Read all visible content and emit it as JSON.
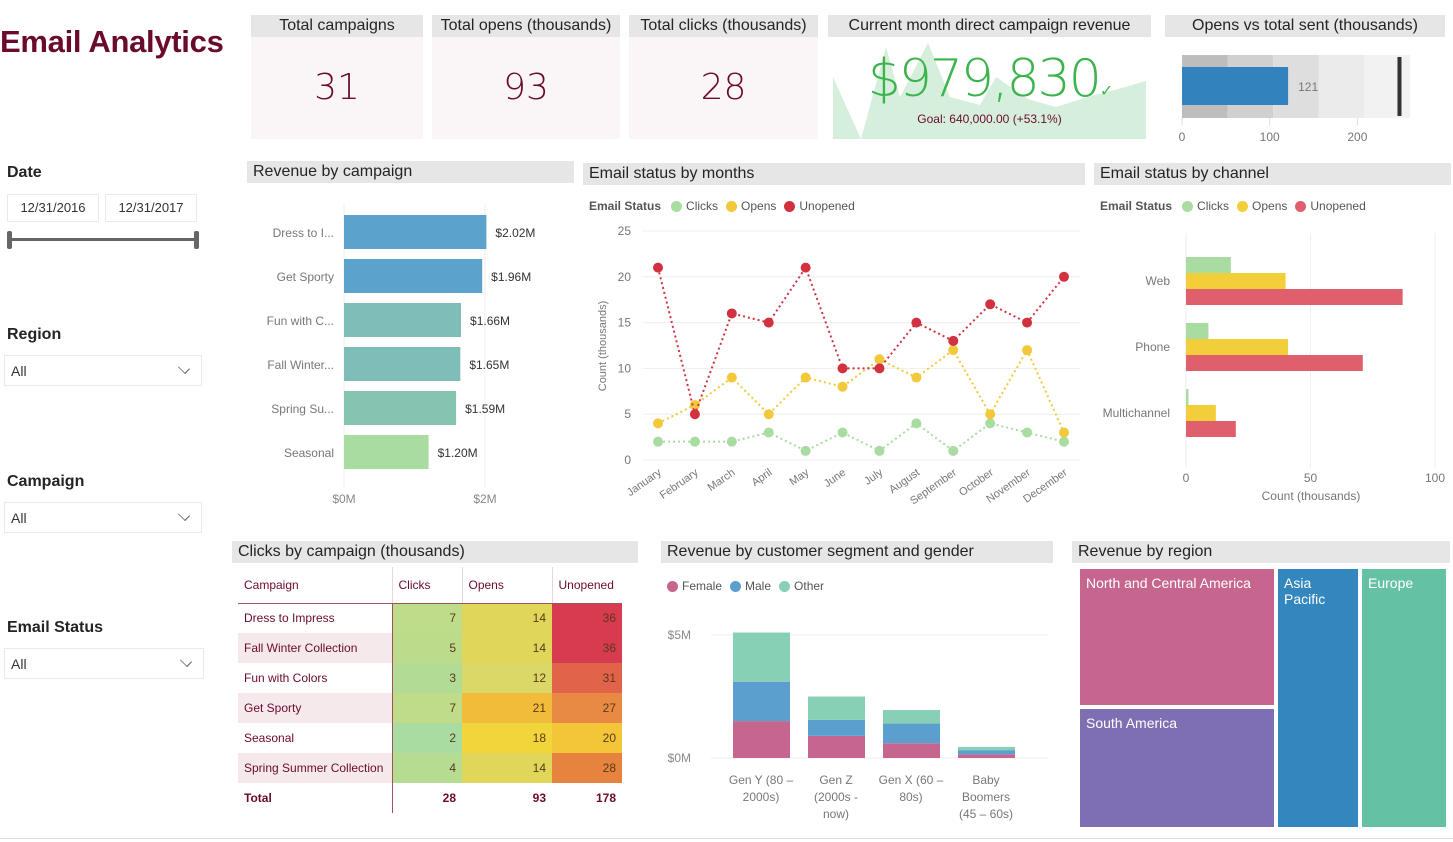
{
  "header": {
    "title": "Email Analytics"
  },
  "filters": {
    "date": {
      "label": "Date",
      "start": "12/31/2016",
      "end": "12/31/2017"
    },
    "region": {
      "label": "Region",
      "value": "All"
    },
    "campaign": {
      "label": "Campaign",
      "value": "All"
    },
    "email_status": {
      "label": "Email Status",
      "value": "All"
    }
  },
  "kpis": {
    "total_campaigns": {
      "title": "Total campaigns",
      "value": "31"
    },
    "total_opens": {
      "title": "Total opens (thousands)",
      "value": "93"
    },
    "total_clicks": {
      "title": "Total clicks (thousands)",
      "value": "28"
    },
    "revenue": {
      "title": "Current month direct campaign revenue",
      "value": "$979,830",
      "goal": "Goal: 640,000.00 (+53.1%)",
      "status_icon": "checkmark-icon",
      "color": "#3cb44b"
    },
    "bullet": {
      "title": "Opens vs total sent (thousands)",
      "value": 121,
      "value_label": "121",
      "target": 248,
      "bands": [
        52,
        104,
        156,
        208,
        260
      ],
      "ticks": [
        "0",
        "100",
        "200"
      ],
      "max": 260,
      "color": "#3182bd"
    }
  },
  "chart_data": [
    {
      "id": "revenue_by_campaign",
      "type": "bar",
      "title": "Revenue by campaign",
      "orientation": "horizontal",
      "categories": [
        "Dress to I...",
        "Get Sporty",
        "Fun with C...",
        "Fall Winter...",
        "Spring Su...",
        "Seasonal"
      ],
      "values": [
        2.02,
        1.96,
        1.66,
        1.65,
        1.59,
        1.2
      ],
      "data_labels": [
        "$2.02M",
        "$1.96M",
        "$1.66M",
        "$1.65M",
        "$1.59M",
        "$1.20M"
      ],
      "colors": [
        "#5ba3cc",
        "#5ba3cc",
        "#7fbdb8",
        "#7fbdb8",
        "#86c3b1",
        "#a8dca0"
      ],
      "xlim": [
        0,
        3
      ],
      "xticks": [
        {
          "v": 0,
          "label": "$0M"
        },
        {
          "v": 2,
          "label": "$2M"
        }
      ],
      "unit": "$M"
    },
    {
      "id": "email_status_by_months",
      "type": "line",
      "title": "Email status by months",
      "legend_title": "Email Status",
      "legend_position": "top-left",
      "categories": [
        "January",
        "February",
        "March",
        "April",
        "May",
        "June",
        "July",
        "August",
        "September",
        "October",
        "November",
        "December"
      ],
      "series": [
        {
          "name": "Clicks",
          "color": "#a8dca0",
          "values": [
            2,
            2,
            2,
            3,
            1,
            3,
            1,
            4,
            1,
            4,
            3,
            2
          ]
        },
        {
          "name": "Opens",
          "color": "#f2c93a",
          "values": [
            4,
            6,
            9,
            5,
            9,
            8,
            11,
            9,
            12,
            5,
            12,
            3
          ]
        },
        {
          "name": "Unopened",
          "color": "#d2323f",
          "values": [
            21,
            5,
            16,
            15,
            21,
            10,
            10,
            15,
            13,
            17,
            15,
            20
          ]
        }
      ],
      "ylabel": "Count (thousands)",
      "ylim": [
        0,
        25
      ],
      "yticks": [
        0,
        5,
        10,
        15,
        20,
        25
      ],
      "grid": true
    },
    {
      "id": "email_status_by_channel",
      "type": "bar",
      "title": "Email status by channel",
      "orientation": "horizontal",
      "legend_title": "Email Status",
      "legend_position": "top-left",
      "categories": [
        "Web",
        "Phone",
        "Multichannel"
      ],
      "series": [
        {
          "name": "Clicks",
          "color": "#a8dca0",
          "values": [
            18,
            9,
            1
          ]
        },
        {
          "name": "Opens",
          "color": "#f2ce3a",
          "values": [
            40,
            41,
            12
          ]
        },
        {
          "name": "Unopened",
          "color": "#df5f6c",
          "values": [
            87,
            71,
            20
          ]
        }
      ],
      "xlabel": "Count (thousands)",
      "xlim": [
        0,
        100
      ],
      "xticks": [
        0,
        50,
        100
      ],
      "grid": true
    },
    {
      "id": "clicks_by_campaign",
      "type": "table",
      "title": "Clicks by campaign (thousands)",
      "columns": [
        "Campaign",
        "Clicks",
        "Opens",
        "Unopened"
      ],
      "rows": [
        {
          "campaign": "Dress to Impress",
          "clicks": 7,
          "opens": 14,
          "unopened": 36,
          "colors": [
            "#bfdc8a",
            "#e0d75a",
            "#d63b4f"
          ]
        },
        {
          "campaign": "Fall Winter Collection",
          "clicks": 5,
          "opens": 14,
          "unopened": 36,
          "colors": [
            "#bcdc8c",
            "#e0d75a",
            "#d63b4f"
          ]
        },
        {
          "campaign": "Fun with Colors",
          "clicks": 3,
          "opens": 12,
          "unopened": 31,
          "colors": [
            "#b2dc95",
            "#dcd868",
            "#e0634a"
          ]
        },
        {
          "campaign": "Get Sporty",
          "clicks": 7,
          "opens": 21,
          "unopened": 27,
          "colors": [
            "#bfdc8a",
            "#f1bc3a",
            "#e88a44"
          ]
        },
        {
          "campaign": "Seasonal",
          "clicks": 2,
          "opens": 18,
          "unopened": 20,
          "colors": [
            "#a8dca0",
            "#f2d53a",
            "#f3c63a"
          ]
        },
        {
          "campaign": "Spring Summer Collection",
          "clicks": 4,
          "opens": 14,
          "unopened": 28,
          "colors": [
            "#b6dc92",
            "#e0d75a",
            "#e6843f"
          ]
        }
      ],
      "total": {
        "label": "Total",
        "clicks": 28,
        "opens": 93,
        "unopened": 178
      }
    },
    {
      "id": "revenue_by_segment_gender",
      "type": "bar",
      "stacked": true,
      "title": "Revenue by customer segment and gender",
      "legend_position": "top-left",
      "categories": [
        [
          "Gen Y (80 –",
          "2000s)"
        ],
        [
          "Gen Z",
          "(2000s -",
          "now)"
        ],
        [
          "Gen X (60 –",
          "80s)"
        ],
        [
          "Baby",
          "Boomers",
          "(45 – 60s)"
        ]
      ],
      "series": [
        {
          "name": "Female",
          "color": "#c6658e",
          "values": [
            1.5,
            0.9,
            0.6,
            0.15
          ]
        },
        {
          "name": "Male",
          "color": "#5b9fcf",
          "values": [
            1.6,
            0.65,
            0.8,
            0.17
          ]
        },
        {
          "name": "Other",
          "color": "#88d0b5",
          "values": [
            2.0,
            0.95,
            0.55,
            0.13
          ]
        }
      ],
      "ylim": [
        0,
        5
      ],
      "yticks": [
        {
          "v": 0,
          "label": "$0M"
        },
        {
          "v": 5,
          "label": "$5M"
        }
      ],
      "unit": "$M",
      "grid": true
    },
    {
      "id": "revenue_by_region",
      "type": "treemap",
      "title": "Revenue by region",
      "items": [
        {
          "name": "North and Central America",
          "color": "#c6658e"
        },
        {
          "name": "South America",
          "color": "#7e6fb3"
        },
        {
          "name": "Asia Pacific",
          "color": "#3386be"
        },
        {
          "name": "Europe",
          "color": "#65c1a3"
        }
      ]
    }
  ]
}
